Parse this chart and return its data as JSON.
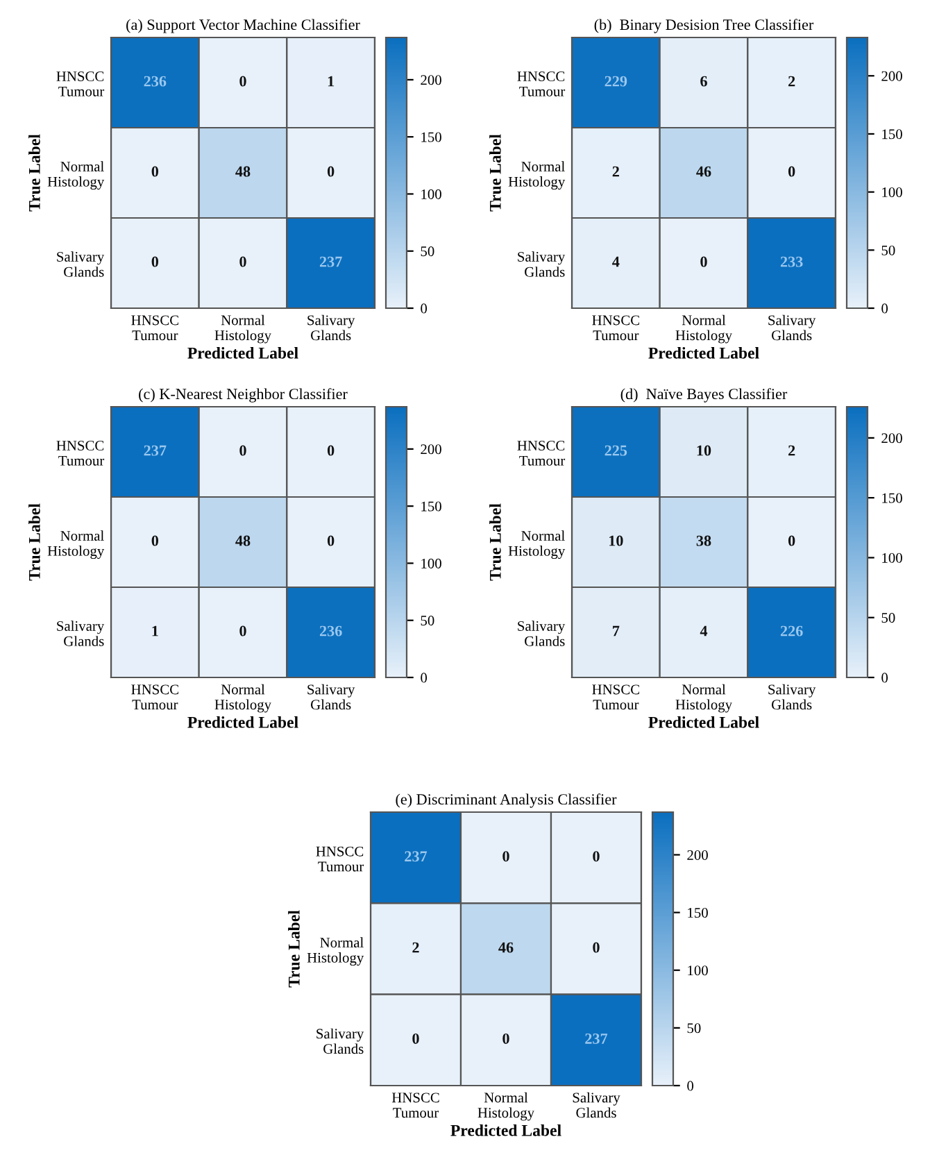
{
  "chart_data": [
    {
      "type": "heatmap",
      "title": "(a) Support Vector Machine Classifier",
      "xlabel": "Predicted Label",
      "ylabel": "True Label",
      "categories": [
        "HNSCC\nTumour",
        "Normal\nHistology",
        "Salivary\nGlands"
      ],
      "y_categories": [
        "HNSCC\nTumour",
        "Normal\nHistology",
        "Salivary\nGlands"
      ],
      "cells": [
        [
          236,
          0,
          1
        ],
        [
          0,
          48,
          0
        ],
        [
          0,
          0,
          237
        ]
      ],
      "clim": [
        0,
        237
      ],
      "cticks": [
        0,
        50,
        100,
        150,
        200
      ],
      "data_labels": true
    },
    {
      "type": "heatmap",
      "title": "(b)  Binary Desision Tree Classifier",
      "xlabel": "Predicted Label",
      "ylabel": "True Label",
      "categories": [
        "HNSCC\nTumour",
        "Normal\nHistology",
        "Salivary\nGlands"
      ],
      "y_categories": [
        "HNSCC\nTumour",
        "Normal\nHistology",
        "Salivary\nGlands"
      ],
      "cells": [
        [
          229,
          6,
          2
        ],
        [
          2,
          46,
          0
        ],
        [
          4,
          0,
          233
        ]
      ],
      "clim": [
        0,
        233
      ],
      "cticks": [
        0,
        50,
        100,
        150,
        200
      ],
      "data_labels": true
    },
    {
      "type": "heatmap",
      "title": "(c) K-Nearest Neighbor Classifier",
      "xlabel": "Predicted Label",
      "ylabel": "True Label",
      "categories": [
        "HNSCC\nTumour",
        "Normal\nHistology",
        "Salivary\nGlands"
      ],
      "y_categories": [
        "HNSCC\nTumour",
        "Normal\nHistology",
        "Salivary\nGlands"
      ],
      "cells": [
        [
          237,
          0,
          0
        ],
        [
          0,
          48,
          0
        ],
        [
          1,
          0,
          236
        ]
      ],
      "clim": [
        0,
        237
      ],
      "cticks": [
        0,
        50,
        100,
        150,
        200
      ],
      "data_labels": true
    },
    {
      "type": "heatmap",
      "title": "(d)  Naïve Bayes Classifier",
      "xlabel": "Predicted Label",
      "ylabel": "True Label",
      "categories": [
        "HNSCC\nTumour",
        "Normal\nHistology",
        "Salivary\nGlands"
      ],
      "y_categories": [
        "HNSCC\nTumour",
        "Normal\nHistology",
        "Salivary\nGlands"
      ],
      "cells": [
        [
          225,
          10,
          2
        ],
        [
          10,
          38,
          0
        ],
        [
          7,
          4,
          226
        ]
      ],
      "clim": [
        0,
        226
      ],
      "cticks": [
        0,
        50,
        100,
        150,
        200
      ],
      "data_labels": true
    },
    {
      "type": "heatmap",
      "title": "(e) Discriminant Analysis Classifier",
      "xlabel": "Predicted Label",
      "ylabel": "True Label",
      "categories": [
        "HNSCC\nTumour",
        "Normal\nHistology",
        "Salivary\nGlands"
      ],
      "y_categories": [
        "HNSCC\nTumour",
        "Normal\nHistology",
        "Salivary\nGlands"
      ],
      "cells": [
        [
          237,
          0,
          0
        ],
        [
          2,
          46,
          0
        ],
        [
          0,
          0,
          237
        ]
      ],
      "clim": [
        0,
        237
      ],
      "cticks": [
        0,
        50,
        100,
        150,
        200
      ],
      "data_labels": true
    }
  ]
}
